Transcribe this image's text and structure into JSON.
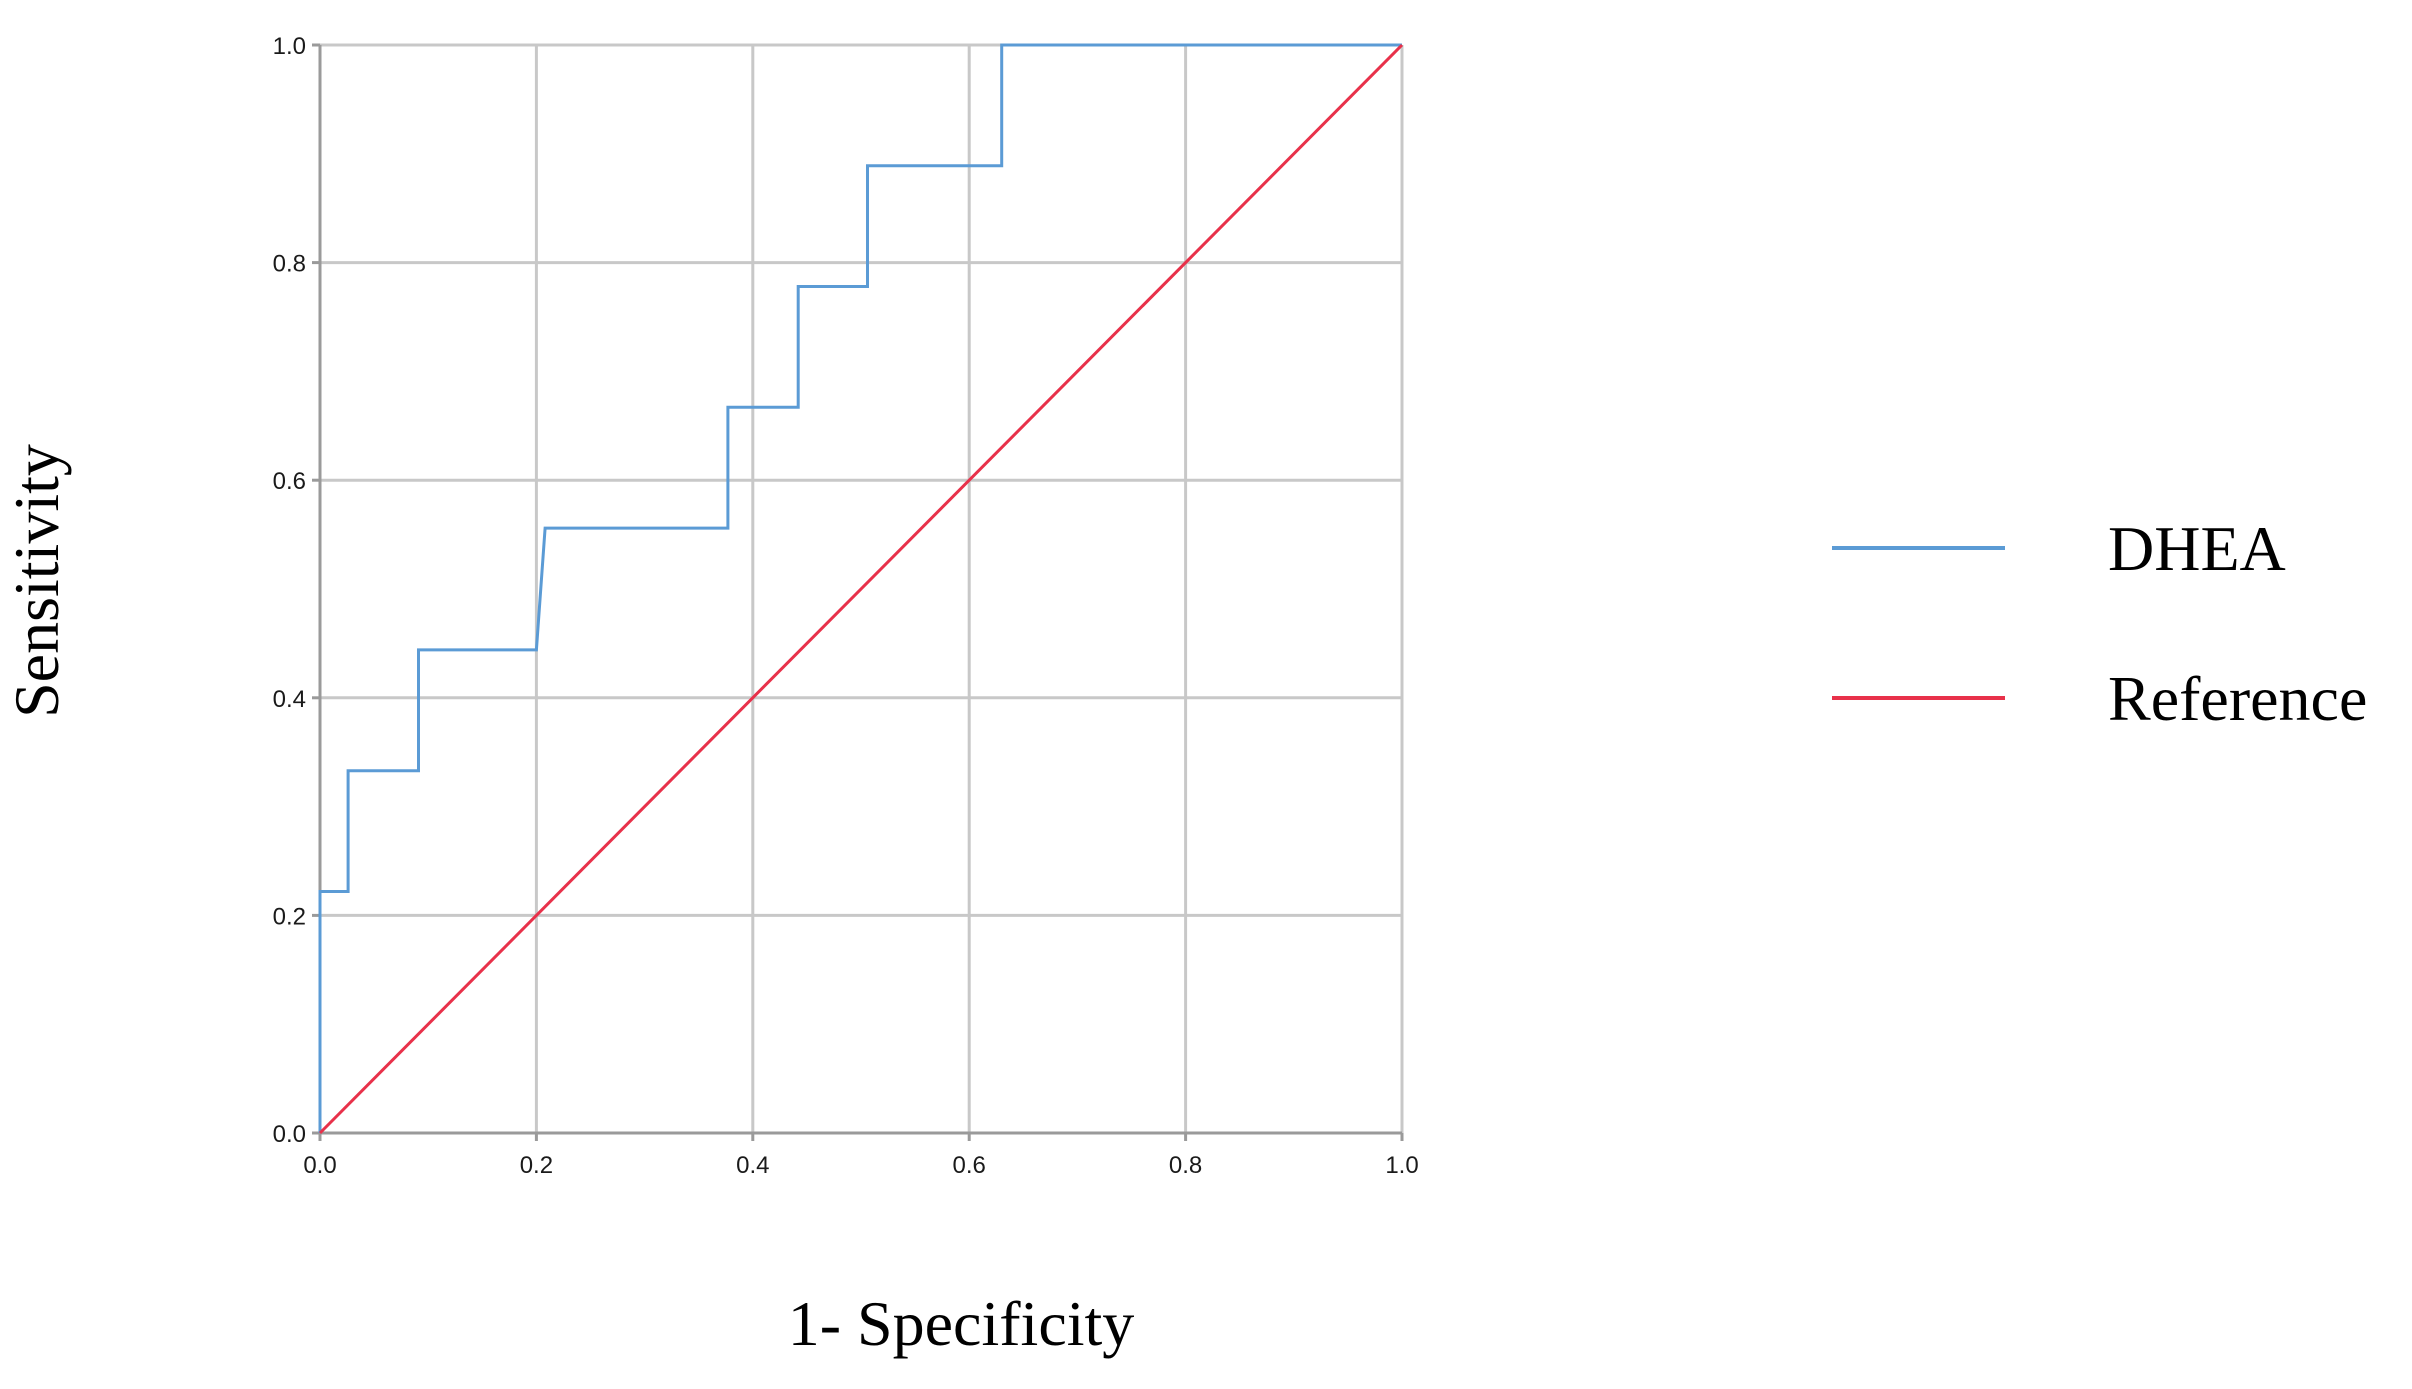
{
  "chart_data": {
    "type": "line",
    "title": "",
    "xlabel": "1- Specificity",
    "ylabel": "Sensitivity",
    "xlim": [
      0,
      1
    ],
    "ylim": [
      0,
      1
    ],
    "x_ticks": [
      "0.0",
      "0.2",
      "0.4",
      "0.6",
      "0.8",
      "1.0"
    ],
    "y_ticks": [
      "0.0",
      "0.2",
      "0.4",
      "0.6",
      "0.8",
      "1.0"
    ],
    "x_tick_values": [
      0,
      0.2,
      0.4,
      0.6,
      0.8,
      1.0
    ],
    "y_tick_values": [
      0,
      0.2,
      0.4,
      0.6,
      0.8,
      1.0
    ],
    "grid": true,
    "legend_position": "right",
    "series": [
      {
        "name": "DHEA",
        "color": "#5b9bd5",
        "step": true,
        "points": [
          [
            0,
            0
          ],
          [
            0,
            0.222
          ],
          [
            0.026,
            0.222
          ],
          [
            0.026,
            0.333
          ],
          [
            0.091,
            0.333
          ],
          [
            0.091,
            0.444
          ],
          [
            0.2,
            0.444
          ],
          [
            0.208,
            0.556
          ],
          [
            0.377,
            0.556
          ],
          [
            0.377,
            0.667
          ],
          [
            0.442,
            0.667
          ],
          [
            0.442,
            0.778
          ],
          [
            0.506,
            0.778
          ],
          [
            0.506,
            0.889
          ],
          [
            0.63,
            0.889
          ],
          [
            0.63,
            1.0
          ],
          [
            1.0,
            1.0
          ]
        ]
      },
      {
        "name": "Reference",
        "color": "#e8314a",
        "step": false,
        "points": [
          [
            0,
            0
          ],
          [
            1,
            1
          ]
        ]
      }
    ]
  }
}
